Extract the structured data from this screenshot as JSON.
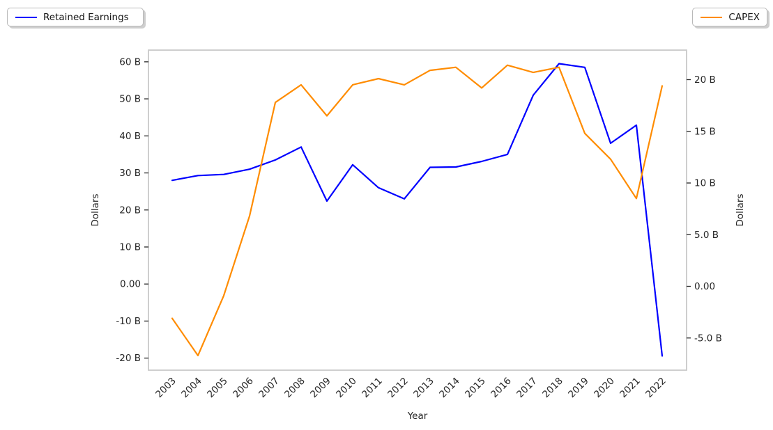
{
  "chart_data": {
    "type": "line",
    "title": "",
    "xlabel": "Year",
    "unit": "billions of dollars",
    "grid": false,
    "x": [
      "2003",
      "2004",
      "2005",
      "2006",
      "2007",
      "2008",
      "2009",
      "2010",
      "2011",
      "2012",
      "2013",
      "2014",
      "2015",
      "2016",
      "2017",
      "2018",
      "2019",
      "2020",
      "2021",
      "2022"
    ],
    "series": [
      {
        "name": "Retained Earnings",
        "axis": "left",
        "color": "#0000ff",
        "values": [
          28.0,
          29.3,
          29.6,
          31.0,
          33.5,
          37.0,
          22.4,
          32.2,
          26.0,
          23.0,
          31.5,
          31.6,
          33.1,
          35.0,
          51.0,
          59.5,
          58.5,
          38.0,
          42.9,
          -19.4
        ]
      },
      {
        "name": "CAPEX",
        "axis": "right",
        "color": "#ff8c00",
        "values": [
          -3.1,
          -6.7,
          -0.9,
          6.8,
          17.8,
          19.5,
          16.5,
          19.5,
          20.1,
          19.5,
          20.9,
          21.2,
          19.2,
          21.4,
          20.7,
          21.2,
          14.8,
          12.3,
          8.5,
          19.4
        ]
      }
    ],
    "left_axis": {
      "label": "Dollars",
      "range": [
        -23.3,
        63.2
      ],
      "ticks": [
        {
          "value": 60,
          "label": "60 B"
        },
        {
          "value": 50,
          "label": "50 B"
        },
        {
          "value": 40,
          "label": "40 B"
        },
        {
          "value": 30,
          "label": "30 B"
        },
        {
          "value": 20,
          "label": "20 B"
        },
        {
          "value": 10,
          "label": "10 B"
        },
        {
          "value": 0,
          "label": "0.00"
        },
        {
          "value": -10,
          "label": "-10 B"
        },
        {
          "value": -20,
          "label": "-20 B"
        }
      ]
    },
    "right_axis": {
      "label": "Dollars",
      "range": [
        -8.1,
        22.9
      ],
      "ticks": [
        {
          "value": 20,
          "label": "20 B"
        },
        {
          "value": 15,
          "label": "15 B"
        },
        {
          "value": 10,
          "label": "10 B"
        },
        {
          "value": 5,
          "label": "5.0 B"
        },
        {
          "value": 0,
          "label": "0.00"
        },
        {
          "value": -5,
          "label": "-5.0 B"
        }
      ]
    },
    "legend": [
      {
        "label": "Retained Earnings",
        "position": "upper-left"
      },
      {
        "label": "CAPEX",
        "position": "upper-right"
      }
    ]
  }
}
